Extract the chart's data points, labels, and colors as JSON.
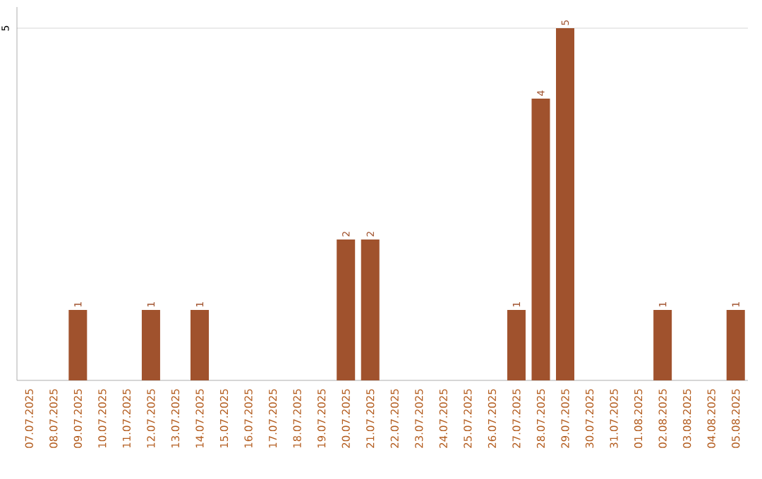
{
  "chart_data": {
    "type": "bar",
    "categories": [
      "07.07.2025",
      "08.07.2025",
      "09.07.2025",
      "10.07.2025",
      "11.07.2025",
      "12.07.2025",
      "13.07.2025",
      "14.07.2025",
      "15.07.2025",
      "16.07.2025",
      "17.07.2025",
      "18.07.2025",
      "19.07.2025",
      "20.07.2025",
      "21.07.2025",
      "22.07.2025",
      "23.07.2025",
      "24.07.2025",
      "25.07.2025",
      "26.07.2025",
      "27.07.2025",
      "28.07.2025",
      "29.07.2025",
      "30.07.2025",
      "31.07.2025",
      "01.08.2025",
      "02.08.2025",
      "03.08.2025",
      "04.08.2025",
      "05.08.2025"
    ],
    "values": [
      0,
      0,
      1,
      0,
      0,
      1,
      0,
      1,
      0,
      0,
      0,
      0,
      0,
      2,
      2,
      0,
      0,
      0,
      0,
      0,
      1,
      4,
      5,
      0,
      0,
      0,
      1,
      0,
      0,
      1
    ],
    "color": "#a0522d",
    "value_labels": [
      null,
      null,
      "1",
      null,
      null,
      "1",
      null,
      "1",
      null,
      null,
      null,
      null,
      null,
      "2",
      "2",
      null,
      null,
      null,
      null,
      null,
      "1",
      "4",
      "5",
      null,
      null,
      null,
      "1",
      null,
      null,
      "1"
    ],
    "ylim": [
      0,
      5.3
    ],
    "yticks": [
      5
    ],
    "grid": "y"
  }
}
